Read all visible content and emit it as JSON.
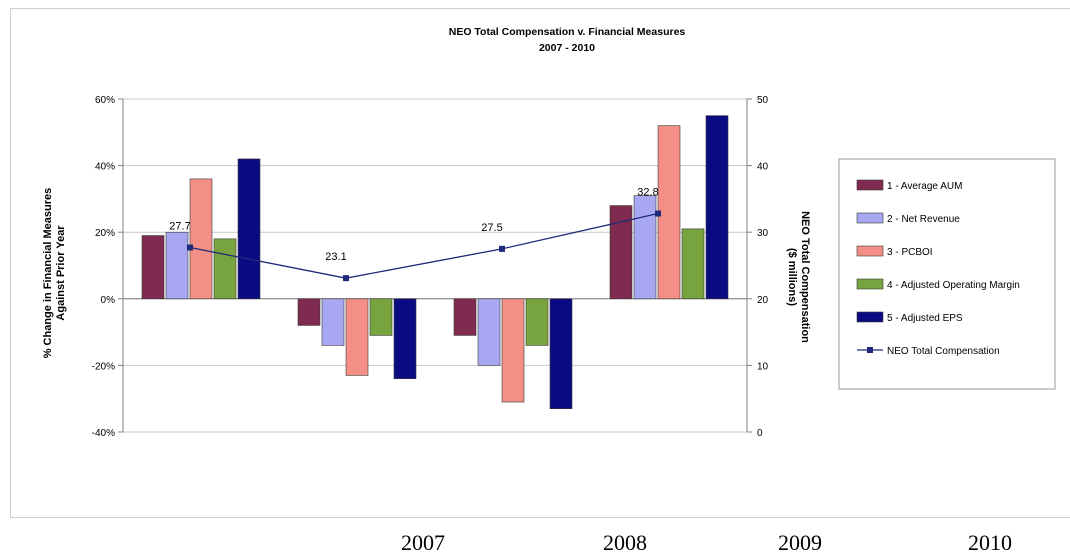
{
  "chart_data": {
    "type": "bar",
    "title": "NEO Total Compensation v. Financial Measures",
    "subtitle": "2007 - 2010",
    "ylabel_left": [
      "% Change in Financial Measures",
      "Against Prior Year"
    ],
    "ylabel_right": [
      "NEO Total Compensation",
      "($ millions)"
    ],
    "y_left_range": [
      -40,
      60
    ],
    "y_left_ticks": [
      "60%",
      "40%",
      "20%",
      "0%",
      "-20%",
      "-40%"
    ],
    "y_left_tick_values": [
      60,
      40,
      20,
      0,
      -20,
      -40
    ],
    "y_right_range": [
      0,
      50
    ],
    "y_right_ticks": [
      "50",
      "40",
      "30",
      "20",
      "10",
      "0"
    ],
    "y_right_tick_values": [
      50,
      40,
      30,
      20,
      10,
      0
    ],
    "grid": true,
    "legend_position": "right",
    "group_count": 4,
    "series": [
      {
        "name": "1 - Average AUM",
        "color": "#7f2a4e",
        "values": [
          19,
          -8,
          -11,
          28
        ]
      },
      {
        "name": "2 - Net Revenue",
        "color": "#a8a8f2",
        "values": [
          20,
          -14,
          -20,
          31
        ]
      },
      {
        "name": "3 - PCBOI",
        "color": "#f48f86",
        "values": [
          36,
          -23,
          -31,
          52
        ]
      },
      {
        "name": "4 - Adjusted Operating Margin",
        "color": "#78a440",
        "values": [
          18,
          -11,
          -14,
          21
        ]
      },
      {
        "name": "5 - Adjusted EPS",
        "color": "#0a0a82",
        "values": [
          42,
          -24,
          -33,
          55
        ]
      }
    ],
    "line_series": {
      "name": "NEO Total Compensation",
      "color": "#1f2a7a",
      "axis": "right",
      "values": [
        27.7,
        23.1,
        27.5,
        32.8
      ],
      "labels": [
        "27.7",
        "23.1",
        "27.5",
        "32.8"
      ]
    },
    "x_year_labels": [
      "2007",
      "2008",
      "2009",
      "2010"
    ]
  }
}
